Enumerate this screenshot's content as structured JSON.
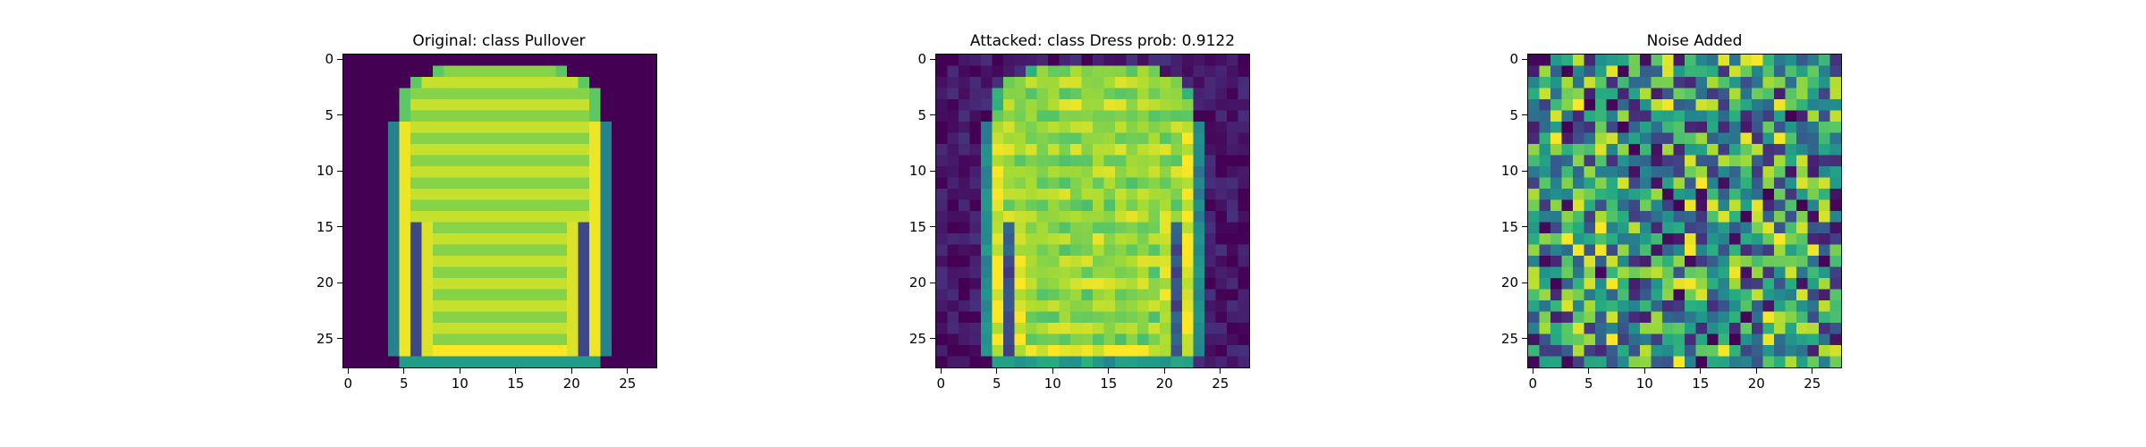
{
  "figure": {
    "panels": [
      {
        "title": "Original: class Pullover",
        "type": "image",
        "x_ticks": [
          "0",
          "5",
          "10",
          "15",
          "20",
          "25"
        ],
        "y_ticks": [
          "0",
          "5",
          "10",
          "15",
          "20",
          "25"
        ]
      },
      {
        "title": "Attacked: class Dress prob: 0.9122",
        "type": "image",
        "x_ticks": [
          "0",
          "5",
          "10",
          "15",
          "20",
          "25"
        ],
        "y_ticks": [
          "0",
          "5",
          "10",
          "15",
          "20",
          "25"
        ]
      },
      {
        "title": "Noise Added",
        "type": "image",
        "x_ticks": [
          "0",
          "5",
          "10",
          "15",
          "20",
          "25"
        ],
        "y_ticks": [
          "0",
          "5",
          "10",
          "15",
          "20",
          "25"
        ]
      }
    ]
  },
  "chart_data": [
    {
      "type": "heatmap",
      "title": "Original: class Pullover",
      "grid_size": [
        28,
        28
      ],
      "colormap": "viridis",
      "colors": [
        "#440154",
        "#3b528b",
        "#21918c",
        "#5ec962",
        "#fde725"
      ],
      "content": "28x28 grayscale image of a pullover (long-sleeve sweater)",
      "xlim": [
        -0.5,
        27.5
      ],
      "ylim": [
        27.5,
        -0.5
      ],
      "x_ticks": [
        0,
        5,
        10,
        15,
        20,
        25
      ],
      "y_ticks": [
        0,
        5,
        10,
        15,
        20,
        25
      ]
    },
    {
      "type": "heatmap",
      "title": "Attacked: class Dress prob: 0.9122",
      "grid_size": [
        28,
        28
      ],
      "colormap": "viridis",
      "colors": [
        "#440154",
        "#3b528b",
        "#21918c",
        "#5ec962",
        "#fde725"
      ],
      "content": "same pullover image with small adversarial perturbation",
      "predicted_class": "Dress",
      "probability": 0.9122,
      "xlim": [
        -0.5,
        27.5
      ],
      "ylim": [
        27.5,
        -0.5
      ],
      "x_ticks": [
        0,
        5,
        10,
        15,
        20,
        25
      ],
      "y_ticks": [
        0,
        5,
        10,
        15,
        20,
        25
      ]
    },
    {
      "type": "heatmap",
      "title": "Noise Added",
      "grid_size": [
        28,
        28
      ],
      "colormap": "viridis",
      "colors": [
        "#440154",
        "#3b528b",
        "#21918c",
        "#5ec962",
        "#fde725"
      ],
      "content": "random-looking perturbation noise pattern",
      "xlim": [
        -0.5,
        27.5
      ],
      "ylim": [
        27.5,
        -0.5
      ],
      "x_ticks": [
        0,
        5,
        10,
        15,
        20,
        25
      ],
      "y_ticks": [
        0,
        5,
        10,
        15,
        20,
        25
      ]
    }
  ]
}
